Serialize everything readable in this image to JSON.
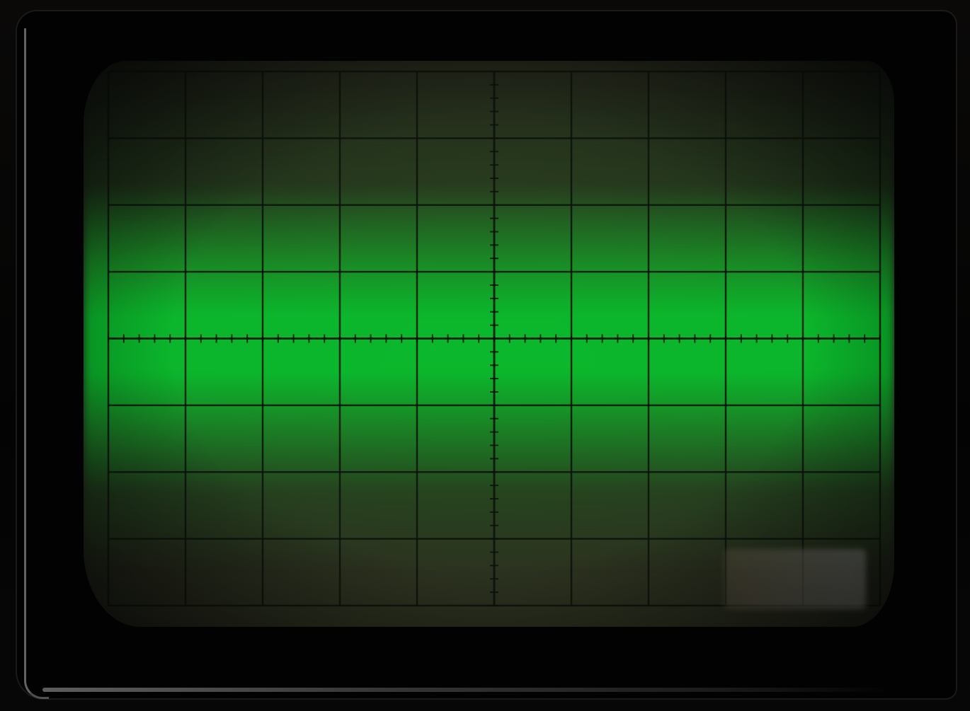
{
  "scene": {
    "subject": "oscilloscope-crt",
    "colors": {
      "phosphor": "#14b93a",
      "graticule": "#0c120a",
      "bezel": "#030303"
    }
  },
  "graticule": {
    "major_divisions_x": 10,
    "major_divisions_y": 8,
    "minor_ticks_per_division": 5
  }
}
